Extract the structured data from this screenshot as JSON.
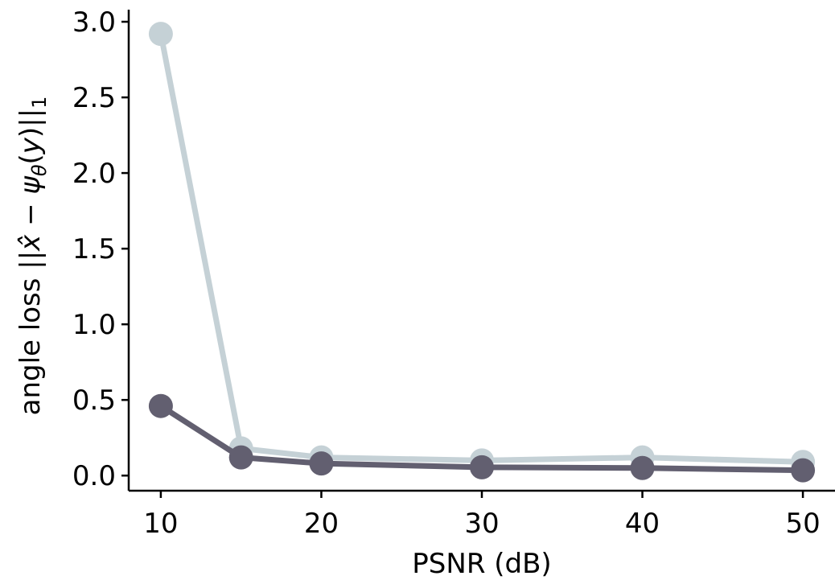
{
  "chart_data": {
    "type": "line",
    "xlabel": "PSNR (dB)",
    "ylabel": "angle loss ||x̂ − ψθ(y)||1",
    "x": [
      10,
      15,
      20,
      30,
      40,
      50
    ],
    "xticks": [
      "10",
      "20",
      "30",
      "40",
      "50"
    ],
    "yticks": [
      "0.0",
      "0.5",
      "1.0",
      "1.5",
      "2.0",
      "2.5",
      "3.0"
    ],
    "xlim": [
      8,
      52
    ],
    "ylim": [
      -0.1,
      3.08
    ],
    "grid": false,
    "series": [
      {
        "values": [
          2.92,
          0.18,
          0.12,
          0.1,
          0.12,
          0.09
        ],
        "color": "#c5d1d6"
      },
      {
        "values": [
          0.46,
          0.12,
          0.08,
          0.055,
          0.05,
          0.035
        ],
        "color": "#625f70"
      }
    ]
  }
}
